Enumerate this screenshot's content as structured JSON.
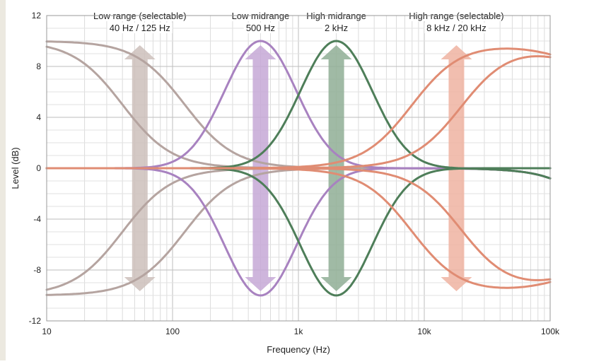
{
  "chart_data": {
    "type": "line",
    "xlabel": "Frequency (Hz)",
    "ylabel": "Level (dB)",
    "x_scale": "log",
    "xlim": [
      10,
      100000
    ],
    "ylim": [
      -12,
      12
    ],
    "x_ticks": [
      {
        "value": 10,
        "label": "10"
      },
      {
        "value": 100,
        "label": "100"
      },
      {
        "value": 1000,
        "label": "1k"
      },
      {
        "value": 10000,
        "label": "10k"
      },
      {
        "value": 100000,
        "label": "100k"
      }
    ],
    "y_ticks": [
      {
        "value": 12,
        "label": "12"
      },
      {
        "value": 8,
        "label": "8"
      },
      {
        "value": 4,
        "label": "4"
      },
      {
        "value": 0,
        "label": "0"
      },
      {
        "value": -4,
        "label": "-4"
      },
      {
        "value": -8,
        "label": "-8"
      },
      {
        "value": -12,
        "label": "-12"
      }
    ],
    "grid": true,
    "bands": [
      {
        "key": "low",
        "color": "#b5a4a0",
        "arrow_color": "#cdbfbb",
        "arrow_x": 55,
        "label_lines": [
          "Low range (selectable)",
          "40 Hz / 125 Hz"
        ],
        "label_x": 55
      },
      {
        "key": "lowmid",
        "color": "#a882c0",
        "arrow_color": "#c5a8d6",
        "arrow_x": 500,
        "label_lines": [
          "Low midrange",
          "500 Hz"
        ],
        "label_x": 500
      },
      {
        "key": "highmid",
        "color": "#4e7e59",
        "arrow_color": "#8fae95",
        "arrow_x": 2000,
        "label_lines": [
          "High midrange",
          "2 kHz"
        ],
        "label_x": 2000
      },
      {
        "key": "high",
        "color": "#e08c73",
        "arrow_color": "#eeb3a1",
        "arrow_x": 18000,
        "label_lines": [
          "High range (selectable)",
          "8 kHz / 20 kHz"
        ],
        "label_x": 18000
      }
    ],
    "series": [
      {
        "band": "low",
        "kind": "shelf_low",
        "freq": 40,
        "gain": 10
      },
      {
        "band": "low",
        "kind": "shelf_low",
        "freq": 125,
        "gain": 10
      },
      {
        "band": "low",
        "kind": "shelf_low",
        "freq": 40,
        "gain": -10
      },
      {
        "band": "low",
        "kind": "shelf_low",
        "freq": 125,
        "gain": -10
      },
      {
        "band": "lowmid",
        "kind": "peak",
        "freq": 500,
        "gain": 10
      },
      {
        "band": "lowmid",
        "kind": "peak",
        "freq": 500,
        "gain": -10
      },
      {
        "band": "highmid",
        "kind": "peak",
        "freq": 2000,
        "gain": 10
      },
      {
        "band": "highmid",
        "kind": "peak",
        "freq": 2000,
        "gain": -10
      },
      {
        "band": "high",
        "kind": "shelf_high",
        "freq": 8000,
        "gain": 10
      },
      {
        "band": "high",
        "kind": "shelf_high",
        "freq": 20000,
        "gain": 10
      },
      {
        "band": "high",
        "kind": "shelf_high",
        "freq": 8000,
        "gain": -10
      },
      {
        "band": "high",
        "kind": "shelf_high",
        "freq": 20000,
        "gain": -10
      }
    ],
    "arrow_range": [
      -10,
      10
    ]
  }
}
